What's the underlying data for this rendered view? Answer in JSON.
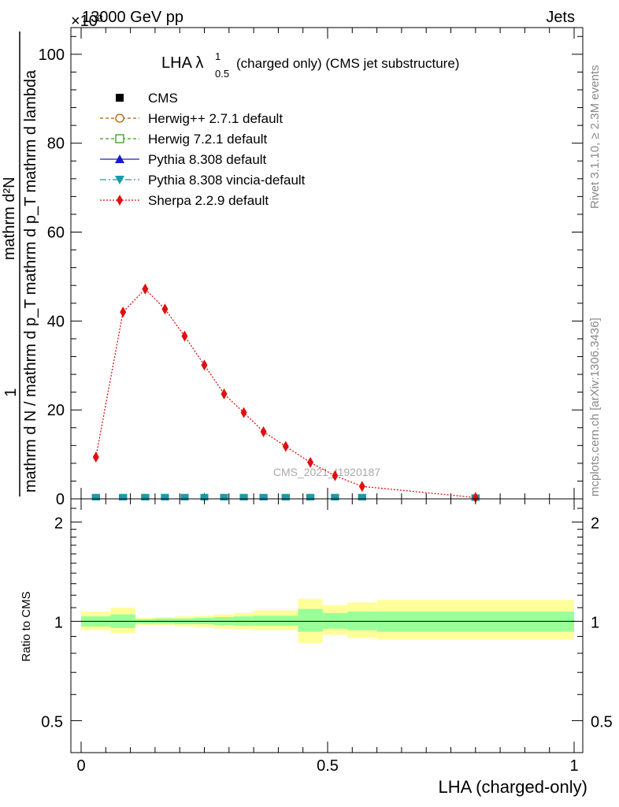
{
  "header": {
    "left": "13000 GeV pp",
    "right": "Jets",
    "exponent": "×10³"
  },
  "side_labels": {
    "rivet": "Rivet 3.1.10, ≥ 2.3M events",
    "mcplots": "mcplots.cern.ch [arXiv:1306.3436]"
  },
  "watermark": "CMS_2021_I1920187",
  "chart_data": [
    {
      "type": "line",
      "title": "LHA λ¹₀.₅ (charged only) (CMS jet substructure)",
      "title_main": "LHA λ",
      "title_sup": "1",
      "title_sub": "0.5",
      "title_rest": "(charged only) (CMS jet substructure)",
      "ylabel_top": "mathrm d²N",
      "ylabel_bottom": "mathrm d N / mathrm d p_T mathrm d p_T mathrm d lambda",
      "ylabel_one": "1",
      "xlim": [
        0,
        1
      ],
      "ylim": [
        0,
        106
      ],
      "yticks": [
        0,
        20,
        40,
        60,
        80,
        100
      ],
      "tick_labels": [
        "0",
        "20",
        "40",
        "60",
        "80",
        "100"
      ],
      "legend": [
        {
          "name": "CMS",
          "color": "#000000",
          "marker": "square"
        },
        {
          "name": "Herwig++ 2.7.1 default",
          "color": "#b35900",
          "marker": "circle-open"
        },
        {
          "name": "Herwig 7.2.1 default",
          "color": "#3a9a1a",
          "marker": "square-open"
        },
        {
          "name": "Pythia 8.308 default",
          "color": "#1a1acc",
          "marker": "triangle"
        },
        {
          "name": "Pythia 8.308 vincia-default",
          "color": "#1a9aaa",
          "marker": "triangle-down"
        },
        {
          "name": "Sherpa 2.2.9 default",
          "color": "#dd1111",
          "marker": "diamond"
        }
      ],
      "cms_points": {
        "x": [
          0.03,
          0.085,
          0.13,
          0.17,
          0.21,
          0.25,
          0.29,
          0.33,
          0.37,
          0.415,
          0.465,
          0.515,
          0.57,
          0.8
        ],
        "y": [
          0.2,
          0.2,
          0.2,
          0.2,
          0.2,
          0.2,
          0.2,
          0.2,
          0.2,
          0.2,
          0.2,
          0.2,
          0.2,
          0.1
        ]
      },
      "sherpa": {
        "x": [
          0.03,
          0.085,
          0.13,
          0.17,
          0.21,
          0.25,
          0.29,
          0.33,
          0.37,
          0.415,
          0.465,
          0.515,
          0.57,
          0.8
        ],
        "y": [
          9.4,
          42.0,
          47.2,
          42.7,
          36.6,
          30.1,
          23.6,
          19.4,
          15.1,
          11.8,
          8.2,
          5.2,
          2.8,
          0.3
        ]
      }
    },
    {
      "type": "area",
      "ylabel": "Ratio to CMS",
      "xlabel": "LHA (charged-only)",
      "xlim": [
        0,
        1
      ],
      "ylim": [
        0.4,
        2.35
      ],
      "log_scale_y": true,
      "yticks": [
        0.5,
        1,
        2
      ],
      "ytick_labels": [
        "0.5",
        "1",
        "2"
      ],
      "xticks": [
        0,
        0.5,
        1
      ],
      "xtick_labels": [
        "0",
        "0.5",
        "1"
      ],
      "bands": [
        {
          "x0": 0.0,
          "x1": 0.06,
          "inner": [
            0.965,
            1.035
          ],
          "outer": [
            0.94,
            1.07
          ]
        },
        {
          "x0": 0.06,
          "x1": 0.11,
          "inner": [
            0.955,
            1.05
          ],
          "outer": [
            0.92,
            1.1
          ]
        },
        {
          "x0": 0.11,
          "x1": 0.15,
          "inner": [
            0.985,
            1.015
          ],
          "outer": [
            0.975,
            1.025
          ]
        },
        {
          "x0": 0.15,
          "x1": 0.19,
          "inner": [
            0.985,
            1.02
          ],
          "outer": [
            0.975,
            1.03
          ]
        },
        {
          "x0": 0.19,
          "x1": 0.23,
          "inner": [
            0.98,
            1.02
          ],
          "outer": [
            0.965,
            1.035
          ]
        },
        {
          "x0": 0.23,
          "x1": 0.27,
          "inner": [
            0.98,
            1.025
          ],
          "outer": [
            0.96,
            1.04
          ]
        },
        {
          "x0": 0.27,
          "x1": 0.31,
          "inner": [
            0.975,
            1.03
          ],
          "outer": [
            0.95,
            1.05
          ]
        },
        {
          "x0": 0.31,
          "x1": 0.35,
          "inner": [
            0.97,
            1.035
          ],
          "outer": [
            0.945,
            1.06
          ]
        },
        {
          "x0": 0.35,
          "x1": 0.44,
          "inner": [
            0.97,
            1.04
          ],
          "outer": [
            0.94,
            1.08
          ]
        },
        {
          "x0": 0.44,
          "x1": 0.49,
          "inner": [
            0.93,
            1.09
          ],
          "outer": [
            0.86,
            1.17
          ]
        },
        {
          "x0": 0.49,
          "x1": 0.54,
          "inner": [
            0.95,
            1.06
          ],
          "outer": [
            0.91,
            1.12
          ]
        },
        {
          "x0": 0.54,
          "x1": 0.6,
          "inner": [
            0.94,
            1.07
          ],
          "outer": [
            0.89,
            1.14
          ]
        },
        {
          "x0": 0.6,
          "x1": 1.0,
          "inner": [
            0.93,
            1.07
          ],
          "outer": [
            0.88,
            1.16
          ]
        }
      ],
      "band_colors": {
        "inner": "#99ff99",
        "outer": "#ffff99"
      }
    }
  ]
}
